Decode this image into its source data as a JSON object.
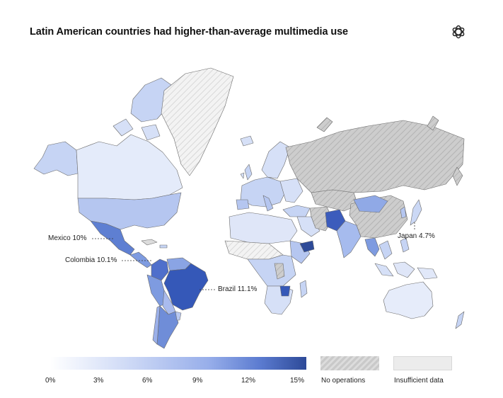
{
  "title": "Latin American countries had higher-than-average multimedia use",
  "logo_icon": "openai-logo-icon",
  "annotations": {
    "mexico": "Mexico 10%",
    "colombia": "Colombia 10.1%",
    "brazil": "Brazil 11.1%",
    "japan": "Japan 4.7%"
  },
  "legend": {
    "scale_ticks": [
      "0%",
      "3%",
      "6%",
      "9%",
      "12%",
      "15%"
    ],
    "no_operations": "No operations",
    "insufficient_data": "Insufficient data"
  },
  "colors": {
    "low": "#ffffff",
    "light": "#cfdaf6",
    "mid": "#97aeea",
    "high": "#2d4a98",
    "no_operations": "#c9c9c9",
    "insufficient": "#ececec"
  }
}
